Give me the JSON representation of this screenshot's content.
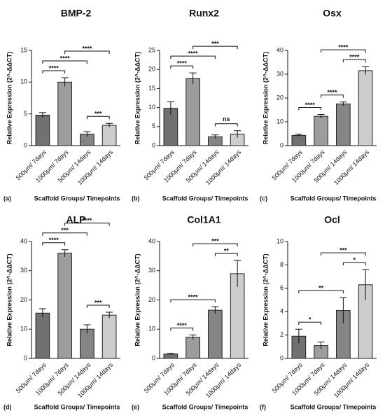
{
  "chart_data": [
    {
      "type": "bar",
      "title": "BMP-2",
      "panel_label": "(a)",
      "ylabel": "Relative Expression (2^-ΔΔCT)",
      "xlabel": "Scaffold Groups/ Timepoints",
      "categories": [
        "500μm/ 7days",
        "1000μm/ 7days",
        "500μm/ 14days",
        "1000μm/ 14days"
      ],
      "values": [
        4.8,
        10.0,
        1.8,
        3.2
      ],
      "errors": [
        0.4,
        0.7,
        0.4,
        0.3
      ],
      "colors": [
        "#717171",
        "#9d9d9d",
        "#858585",
        "#cdcdcd"
      ],
      "ylim": [
        0,
        15
      ],
      "yticks": [
        0,
        5,
        10,
        15
      ],
      "significance": [
        {
          "pair": [
            0,
            1
          ],
          "label": "****"
        },
        {
          "pair": [
            2,
            3
          ],
          "label": "***"
        },
        {
          "pair": [
            0,
            2
          ],
          "label": "****"
        },
        {
          "pair": [
            1,
            3
          ],
          "label": "****"
        }
      ]
    },
    {
      "type": "bar",
      "title": "Runx2",
      "panel_label": "(b)",
      "ylabel": "Relative Expression (2^-ΔΔCT)",
      "xlabel": "Scaffold Groups/ Timepoints",
      "categories": [
        "500μm/ 7days",
        "1000μm/ 7days",
        "500μm/ 14days",
        "1000μm/ 14days"
      ],
      "values": [
        9.8,
        17.6,
        2.3,
        3.0
      ],
      "errors": [
        1.7,
        1.5,
        0.5,
        0.9
      ],
      "colors": [
        "#717171",
        "#9d9d9d",
        "#858585",
        "#cdcdcd"
      ],
      "ylim": [
        0,
        25
      ],
      "yticks": [
        0,
        5,
        10,
        15,
        20,
        25
      ],
      "significance": [
        {
          "pair": [
            0,
            1
          ],
          "label": "****"
        },
        {
          "pair": [
            2,
            3
          ],
          "label": "ns"
        },
        {
          "pair": [
            0,
            2
          ],
          "label": "****"
        },
        {
          "pair": [
            1,
            3
          ],
          "label": "***"
        }
      ]
    },
    {
      "type": "bar",
      "title": "Osx",
      "panel_label": "(c)",
      "ylabel": "Relative Expression (2^-ΔΔCT)",
      "xlabel": "Scaffold Groups/ Timepoints",
      "categories": [
        "500μm/ 7days",
        "1000μm/ 7days",
        "500μm/ 14days",
        "1000μm/ 14days"
      ],
      "values": [
        4.3,
        12.3,
        17.5,
        31.5
      ],
      "errors": [
        0.5,
        0.8,
        0.8,
        1.7
      ],
      "colors": [
        "#717171",
        "#9d9d9d",
        "#858585",
        "#cdcdcd"
      ],
      "ylim": [
        0,
        40
      ],
      "yticks": [
        0,
        10,
        20,
        30,
        40
      ],
      "significance": [
        {
          "pair": [
            0,
            1
          ],
          "label": "****"
        },
        {
          "pair": [
            1,
            2
          ],
          "label": "****"
        },
        {
          "pair": [
            2,
            3
          ],
          "label": "****"
        },
        {
          "pair": [
            1,
            3
          ],
          "label": "****"
        }
      ]
    },
    {
      "type": "bar",
      "title": "ALP",
      "panel_label": "(d)",
      "ylabel": "Relative Expression (2^-ΔΔCT)",
      "xlabel": "Scaffold Groups/ Timepoints",
      "categories": [
        "500μm/ 7days",
        "1000μm/ 7days",
        "500μm/ 14days",
        "1000μm/ 14days"
      ],
      "values": [
        15.5,
        36.0,
        10.0,
        14.8
      ],
      "errors": [
        1.5,
        1.2,
        1.5,
        1.0
      ],
      "colors": [
        "#717171",
        "#9d9d9d",
        "#858585",
        "#cdcdcd"
      ],
      "ylim": [
        0,
        40
      ],
      "yticks": [
        0,
        10,
        20,
        30,
        40
      ],
      "significance": [
        {
          "pair": [
            0,
            1
          ],
          "label": "****"
        },
        {
          "pair": [
            2,
            3
          ],
          "label": "***"
        },
        {
          "pair": [
            0,
            2
          ],
          "label": "***"
        },
        {
          "pair": [
            1,
            3
          ],
          "label": "****"
        }
      ]
    },
    {
      "type": "bar",
      "title": "Col1A1",
      "panel_label": "(e)",
      "ylabel": "Relative Expression (2^-ΔΔCT)",
      "xlabel": "Scaffold Groups/ Timepoints",
      "categories": [
        "500μm/ 7days",
        "1000μm/ 7days",
        "500μm/ 14days",
        "1000μm/ 14days"
      ],
      "values": [
        1.5,
        7.2,
        16.5,
        29.0
      ],
      "errors": [
        0.2,
        0.8,
        1.2,
        4.5
      ],
      "colors": [
        "#717171",
        "#9d9d9d",
        "#858585",
        "#cdcdcd"
      ],
      "ylim": [
        0,
        40
      ],
      "yticks": [
        0,
        10,
        20,
        30,
        40
      ],
      "significance": [
        {
          "pair": [
            0,
            1
          ],
          "label": "****"
        },
        {
          "pair": [
            0,
            2
          ],
          "label": "****"
        },
        {
          "pair": [
            2,
            3
          ],
          "label": "**"
        },
        {
          "pair": [
            1,
            3
          ],
          "label": "***"
        }
      ]
    },
    {
      "type": "bar",
      "title": "Ocl",
      "panel_label": "(f)",
      "ylabel": "Relative Expression (2^-ΔΔCT)",
      "xlabel": "Scaffold Groups/ Timepoints",
      "categories": [
        "500μm/ 7days",
        "1000μm/ 7days",
        "500μm/ 14days",
        "1000μm/ 14days"
      ],
      "values": [
        1.9,
        1.1,
        4.1,
        6.3
      ],
      "errors": [
        0.6,
        0.3,
        1.1,
        1.3
      ],
      "colors": [
        "#717171",
        "#9d9d9d",
        "#858585",
        "#cdcdcd"
      ],
      "ylim": [
        0,
        10
      ],
      "yticks": [
        0,
        2,
        4,
        6,
        8,
        10
      ],
      "significance": [
        {
          "pair": [
            0,
            1
          ],
          "label": "*"
        },
        {
          "pair": [
            0,
            2
          ],
          "label": "**"
        },
        {
          "pair": [
            2,
            3
          ],
          "label": "*"
        },
        {
          "pair": [
            1,
            3
          ],
          "label": "***"
        }
      ]
    }
  ]
}
